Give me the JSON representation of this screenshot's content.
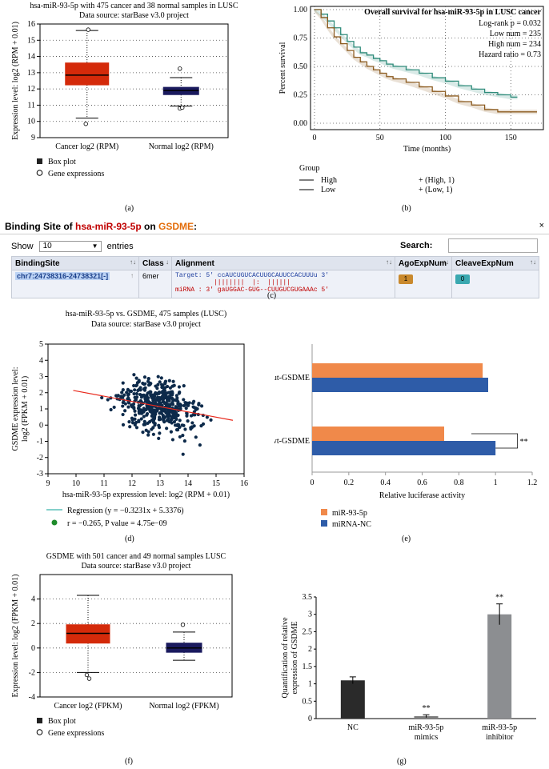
{
  "captions": {
    "a": "(a)",
    "b": "(b)",
    "c": "(c)",
    "d": "(d)",
    "e": "(e)",
    "f": "(f)",
    "g": "(g)"
  },
  "panel_a": {
    "chart_data": {
      "type": "box",
      "title": "hsa-miR-93-5p with 475 cancer and 38 normal samples in LUSC",
      "subtitle": "Data source: starBase v3.0 project",
      "ylabel": "Expression level: log2 (RPM + 0.01)",
      "ylim": [
        9,
        16
      ],
      "yticks": [
        "9",
        "10",
        "11",
        "12",
        "13",
        "14",
        "15",
        "16"
      ],
      "categories": [
        "Cancer log2 (RPM)",
        "Normal log2 (RPM)"
      ],
      "boxes": [
        {
          "name": "Cancer log2 (RPM)",
          "q1": 12.25,
          "median": 12.85,
          "q3": 13.6,
          "whisker_low": 10.2,
          "whisker_high": 15.6,
          "outliers": [
            9.85,
            15.65
          ],
          "color": "#d42a0a"
        },
        {
          "name": "Normal log2 (RPM)",
          "q1": 11.65,
          "median": 11.9,
          "q3": 12.1,
          "whisker_low": 10.95,
          "whisker_high": 12.7,
          "outliers": [
            10.8,
            10.85,
            13.25
          ],
          "color": "#1a1a5e"
        }
      ],
      "legend": [
        "Box plot",
        "Gene expressions"
      ]
    }
  },
  "panel_b": {
    "chart_data": {
      "type": "line",
      "title": "Overall survival for hsa-miR-93-5p in LUSC cancer",
      "xlabel": "Time (months)",
      "ylabel": "Percent survival",
      "xlim": [
        0,
        170
      ],
      "ylim": [
        0,
        1.0
      ],
      "xticks": [
        "0",
        "50",
        "100",
        "150"
      ],
      "yticks": [
        "0.00",
        "0.25",
        "0.50",
        "0.75",
        "1.00"
      ],
      "annotations": [
        "Log-rank p = 0.032",
        "Low num = 235",
        "High num = 234",
        "Hazard ratio = 0.73"
      ],
      "series": [
        {
          "name": "High",
          "color": "#2e8b7a",
          "x": [
            0,
            5,
            10,
            15,
            20,
            25,
            30,
            35,
            40,
            45,
            50,
            55,
            60,
            70,
            80,
            90,
            100,
            110,
            120,
            130,
            140,
            150,
            155
          ],
          "y": [
            1.0,
            0.96,
            0.9,
            0.84,
            0.78,
            0.72,
            0.67,
            0.62,
            0.6,
            0.57,
            0.55,
            0.52,
            0.5,
            0.47,
            0.44,
            0.4,
            0.37,
            0.33,
            0.3,
            0.27,
            0.25,
            0.23,
            0.23
          ]
        },
        {
          "name": "Low",
          "color": "#8b5a1e",
          "x": [
            0,
            5,
            10,
            15,
            20,
            25,
            30,
            35,
            40,
            45,
            50,
            55,
            60,
            70,
            80,
            90,
            100,
            110,
            120,
            130,
            140,
            150,
            160,
            170
          ],
          "y": [
            1.0,
            0.93,
            0.84,
            0.76,
            0.7,
            0.64,
            0.58,
            0.54,
            0.5,
            0.47,
            0.44,
            0.41,
            0.39,
            0.36,
            0.32,
            0.28,
            0.24,
            0.19,
            0.16,
            0.12,
            0.1,
            0.1,
            0.1,
            0.1
          ]
        }
      ],
      "legend_title": "Group",
      "legend": [
        {
          "name": "High",
          "label": "+ (High, 1)"
        },
        {
          "name": "Low",
          "label": "+ (Low, 1)"
        }
      ]
    }
  },
  "panel_c": {
    "title_prefix": "Binding Site of ",
    "mirna": "hsa-miR-93-5p",
    "on": " on ",
    "gene": "GSDME",
    "colon": ":",
    "close": "×",
    "show_label": "Show",
    "entries_value": "10",
    "entries_label": "entries",
    "search_label": "Search:",
    "columns": [
      "BindingSite",
      "Class",
      "Alignment",
      "AgoExpNum",
      "CleaveExpNum"
    ],
    "row": {
      "site": "chr7:24738316-24738321[-]",
      "class": "6mer",
      "target": "Target: 5' ccAUCUGUCACUUGCAUUCCACUUUu 3'",
      "bars": "          ||||||||  |:  ||||||",
      "mirna": "miRNA : 3' gaUGGAC-GUG--CUUGUCGUGAAAc 5'",
      "ago": "1",
      "cleave": "0"
    }
  },
  "panel_d": {
    "chart_data": {
      "type": "scatter",
      "title": "hsa-miR-93-5p vs. GSDME, 475 samples (LUSC)",
      "subtitle": "Data source: starBase v3.0 project",
      "xlabel": "hsa-miR-93-5p expression level: log2 (RPM + 0.01)",
      "ylabel_1": "GSDME expression level:",
      "ylabel_2": "log2 (FPKM + 0.01)",
      "xlim": [
        9,
        16
      ],
      "ylim": [
        -3,
        5
      ],
      "xticks": [
        "9",
        "10",
        "11",
        "12",
        "13",
        "14",
        "15",
        "16"
      ],
      "yticks": [
        "-3",
        "-2",
        "-1",
        "0",
        "1",
        "2",
        "3",
        "4",
        "5"
      ],
      "regression": {
        "slope": -0.3231,
        "intercept": 5.3376,
        "color": "#e8291c"
      },
      "legend_regression": "Regression (y = −0.3231x + 5.3376)",
      "legend_stats": "r = −0.265, P value = 4.75e−09",
      "point_count": 475,
      "point_color": "#0d2a4a"
    }
  },
  "panel_e": {
    "chart_data": {
      "type": "bar",
      "orientation": "horizontal",
      "categories": [
        "mut-GSDME",
        "wt-GSDME"
      ],
      "series": [
        {
          "name": "miR-93-5p",
          "color": "#f0894a",
          "values": [
            0.93,
            0.72
          ]
        },
        {
          "name": "miRNA-NC",
          "color": "#2e5ca8",
          "values": [
            0.96,
            1.0
          ]
        }
      ],
      "xlabel": "Relative luciferase activity",
      "xlim": [
        0,
        1.2
      ],
      "xticks": [
        "0",
        "0.2",
        "0.4",
        "0.6",
        "0.8",
        "1",
        "1.2"
      ],
      "annotation": "**"
    }
  },
  "panel_f": {
    "chart_data": {
      "type": "box",
      "title": "GSDME with 501 cancer and 49 normal samples LUSC",
      "subtitle": "Data source: starBase v3.0 project",
      "ylabel": "Expression level: log2 (FPKM + 0.01)",
      "ylim": [
        -4,
        6
      ],
      "yticks": [
        "-4",
        "-2",
        "0",
        "2",
        "4"
      ],
      "categories": [
        "Cancer log2 (FPKM)",
        "Normal log2 (FPKM)"
      ],
      "boxes": [
        {
          "name": "Cancer log2 (FPKM)",
          "q1": 0.4,
          "median": 1.2,
          "q3": 1.9,
          "whisker_low": -2.0,
          "whisker_high": 4.3,
          "outliers": [
            -2.2,
            -2.5
          ],
          "color": "#d42a0a"
        },
        {
          "name": "Normal log2 (FPKM)",
          "q1": -0.35,
          "median": 0.0,
          "q3": 0.4,
          "whisker_low": -1.0,
          "whisker_high": 1.3,
          "outliers": [
            1.9
          ],
          "color": "#1a1a5e"
        }
      ],
      "legend": [
        "Box plot",
        "Gene expressions"
      ]
    }
  },
  "panel_g": {
    "chart_data": {
      "type": "bar",
      "categories": [
        "NC",
        "miR-93-5p mimics",
        "miR-93-5p inhibitor"
      ],
      "category_lines": [
        [
          "NC"
        ],
        [
          "miR-93-5p",
          "mimics"
        ],
        [
          "miR-93-5p",
          "inhibitor"
        ]
      ],
      "values": [
        1.1,
        0.07,
        3.0
      ],
      "errors": [
        0.1,
        0.04,
        0.3
      ],
      "colors": [
        "#2a2a2a",
        "#7d7d7d",
        "#8c8e91"
      ],
      "significance": [
        "",
        "**",
        "**"
      ],
      "ylabel_1": "Quantification of relative",
      "ylabel_2": "expression of GSDME",
      "ylim": [
        0,
        3.5
      ],
      "yticks": [
        "0",
        "0.5",
        "1",
        "1.5",
        "2",
        "2.5",
        "3",
        "3.5"
      ]
    }
  }
}
